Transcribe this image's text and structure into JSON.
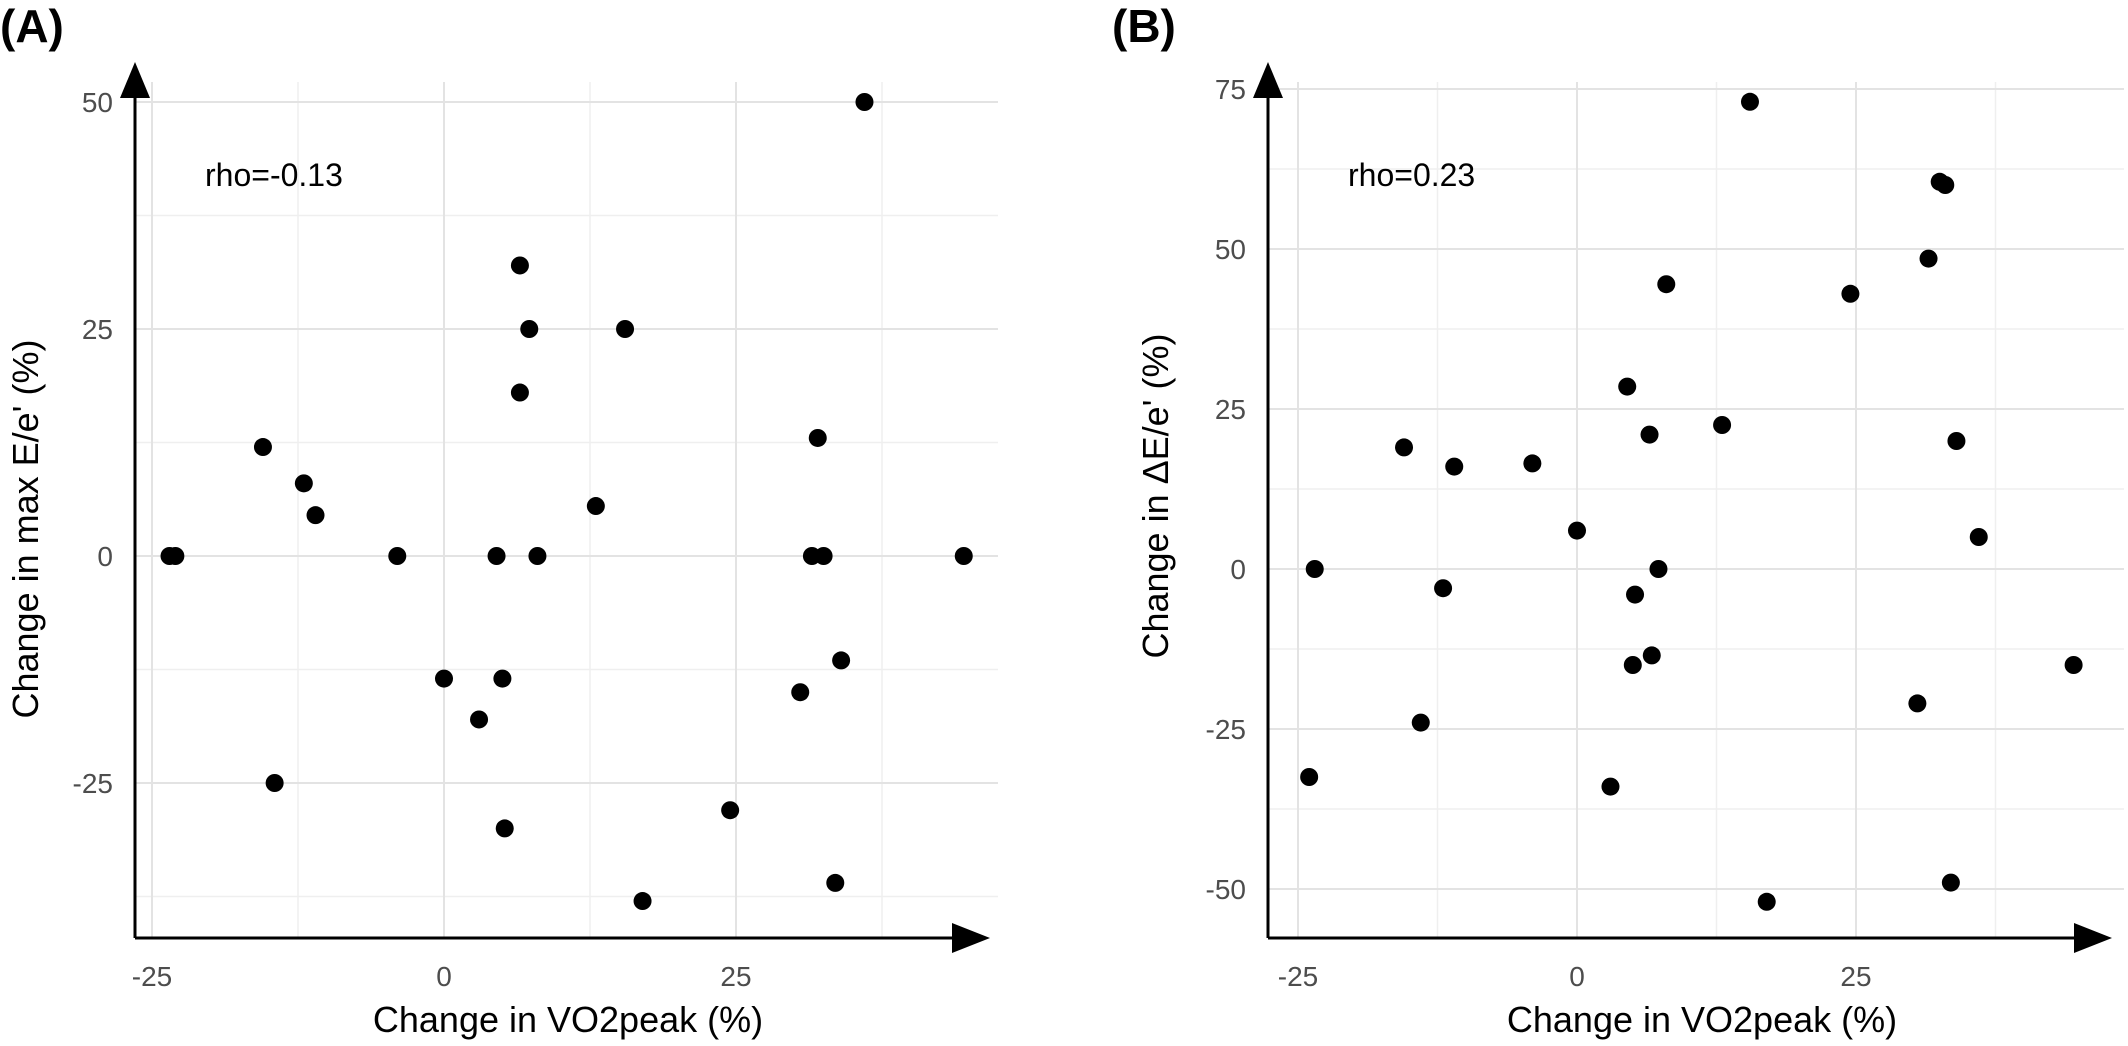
{
  "chart_data": [
    {
      "type": "scatter",
      "panel_label": "(A)",
      "annotation": "rho=-0.13",
      "xlabel": "Change in VO2peak (%)",
      "ylabel": "Change in max E/e' (%)",
      "xlim": [
        -26,
        48
      ],
      "ylim": [
        -42,
        54
      ],
      "x_ticks": [
        -25,
        0,
        25
      ],
      "y_ticks": [
        -25,
        0,
        25,
        50
      ],
      "grid": true,
      "x": [
        -23.5,
        -23.0,
        -15.5,
        -14.5,
        -12.0,
        -11.0,
        -4.0,
        0.0,
        3.0,
        4.5,
        5.0,
        5.2,
        6.5,
        6.5,
        7.3,
        8.0,
        13.0,
        15.5,
        17.0,
        24.5,
        30.5,
        31.5,
        32.0,
        32.5,
        33.5,
        34.0,
        36.0,
        44.5
      ],
      "y": [
        0,
        0,
        12,
        -25,
        8,
        4.5,
        0,
        -13.5,
        -18,
        0,
        -13.5,
        -30,
        32,
        18,
        25,
        0,
        5.5,
        25,
        -38,
        -28,
        -15,
        0,
        13,
        0,
        -36,
        -11.5,
        50,
        0
      ]
    },
    {
      "type": "scatter",
      "panel_label": "(B)",
      "annotation": "rho=0.23",
      "xlabel": "Change in VO2peak (%)",
      "ylabel": "Change in ΔE/e' (%)",
      "xlim": [
        -26,
        48
      ],
      "ylim": [
        -58,
        78
      ],
      "x_ticks": [
        -25,
        0,
        25
      ],
      "y_ticks": [
        -50,
        -25,
        0,
        25,
        50,
        75
      ],
      "grid": true,
      "x": [
        -24.0,
        -23.5,
        -15.5,
        -14.0,
        -12.0,
        -11.0,
        -4.0,
        0.0,
        3.0,
        4.5,
        5.0,
        5.2,
        6.5,
        6.7,
        7.3,
        8.0,
        13.0,
        15.5,
        17.0,
        24.5,
        30.5,
        31.5,
        32.5,
        33.0,
        33.5,
        34.0,
        36.0,
        44.5
      ],
      "y": [
        -32.5,
        0,
        19,
        -24,
        -3,
        16,
        16.5,
        6,
        -34,
        28.5,
        -15,
        -4,
        21,
        -13.5,
        0,
        44.5,
        22.5,
        73,
        -52,
        43,
        -21,
        48.5,
        60.5,
        60,
        -49,
        20,
        5,
        -15
      ]
    }
  ]
}
